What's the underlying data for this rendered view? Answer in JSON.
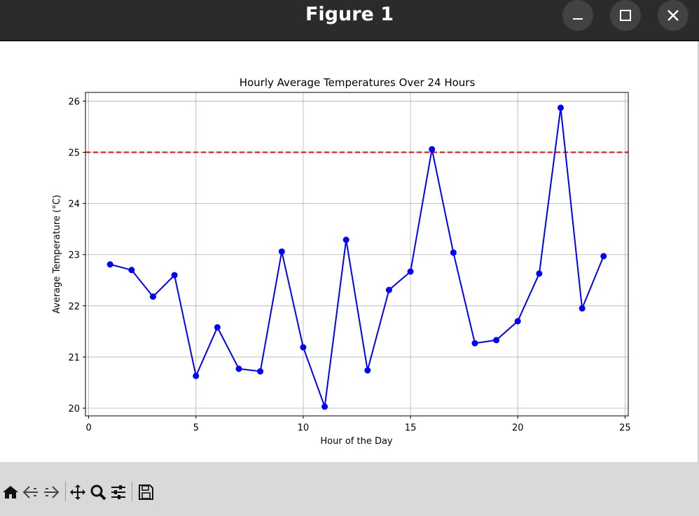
{
  "window": {
    "title": "Figure 1",
    "buttons": [
      "minimize-icon",
      "maximize-icon",
      "close-icon"
    ]
  },
  "toolbar": {
    "icons": [
      "home-icon",
      "back-icon",
      "forward-icon",
      "pan-icon",
      "zoom-icon",
      "configure-subplots-icon",
      "save-icon"
    ]
  },
  "chart_data": {
    "type": "line",
    "title": "Hourly Average Temperatures Over 24 Hours",
    "xlabel": "Hour of the Day",
    "ylabel": "Average Temperature (°C)",
    "xlim": [
      -0.15,
      25.15
    ],
    "ylim": [
      19.85,
      26.17
    ],
    "xticks": [
      0,
      5,
      10,
      15,
      20,
      25
    ],
    "yticks": [
      20,
      21,
      22,
      23,
      24,
      25,
      26
    ],
    "grid": true,
    "series": [
      {
        "color": "#0000ff",
        "marker": "circle",
        "x": [
          1,
          2,
          3,
          4,
          5,
          6,
          7,
          8,
          9,
          10,
          11,
          12,
          13,
          14,
          15,
          16,
          17,
          18,
          19,
          20,
          21,
          22,
          23,
          24
        ],
        "y": [
          22.81,
          22.7,
          22.18,
          22.6,
          20.63,
          21.58,
          20.77,
          20.72,
          23.06,
          21.19,
          20.03,
          23.29,
          20.74,
          22.31,
          22.67,
          25.06,
          23.04,
          21.27,
          21.33,
          21.7,
          22.63,
          25.87,
          21.95,
          22.97
        ]
      }
    ],
    "hlines": [
      {
        "y": 25,
        "color": "#ff0000",
        "style": "dashed"
      }
    ]
  }
}
